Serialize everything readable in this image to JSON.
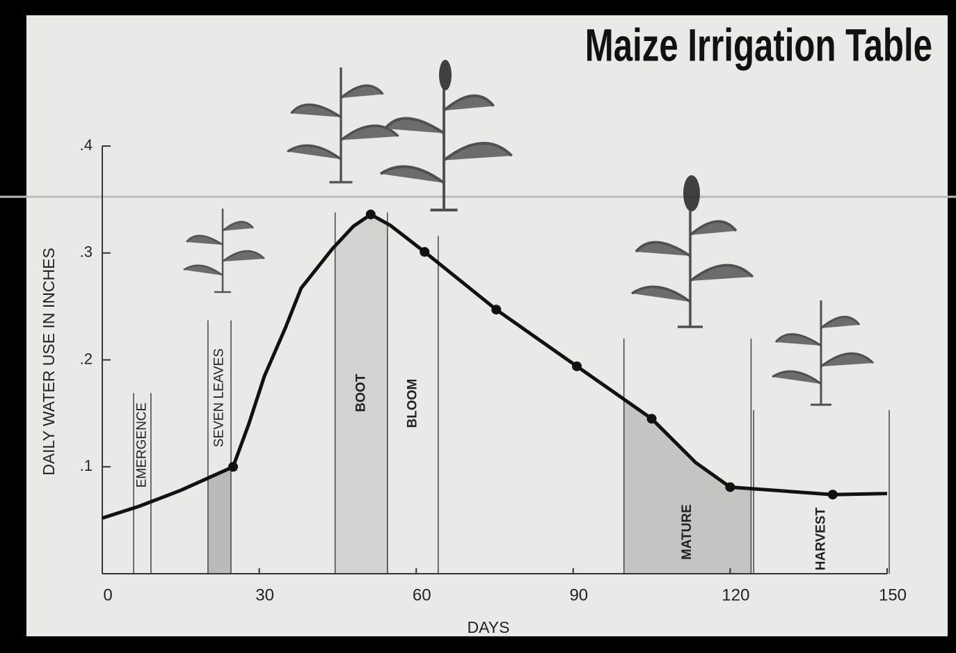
{
  "chart_data": {
    "type": "line",
    "title": "Maize Irrigation Table",
    "x_label": "DAYS",
    "y_label": "DAILY WATER USE IN INCHES",
    "xlim": [
      0,
      150
    ],
    "ylim": [
      0,
      0.4
    ],
    "xticks": [
      0,
      30,
      60,
      90,
      120,
      150
    ],
    "yticks": [
      {
        "value": 0.1,
        "label": ".1"
      },
      {
        "value": 0.2,
        "label": ".2"
      },
      {
        "value": 0.3,
        "label": ".3"
      },
      {
        "value": 0.4,
        "label": ".4"
      }
    ],
    "series": [
      {
        "color": "#111111",
        "x": [
          0,
          7,
          15,
          20,
          25,
          28,
          31,
          35,
          38,
          44,
          48,
          51.3,
          55,
          61.6,
          75.3,
          90.7,
          105,
          113.4,
          120,
          139.6,
          150
        ],
        "values": [
          0.052,
          0.063,
          0.078,
          0.089,
          0.1,
          0.14,
          0.185,
          0.23,
          0.267,
          0.304,
          0.325,
          0.336,
          0.326,
          0.301,
          0.247,
          0.194,
          0.145,
          0.104,
          0.081,
          0.074,
          0.075
        ]
      },
      {
        "type": "scatter",
        "color": "#111111",
        "x": [
          25,
          51.3,
          61.6,
          75.3,
          90.7,
          105,
          120,
          139.6
        ],
        "values": [
          0.1,
          0.336,
          0.301,
          0.247,
          0.194,
          0.145,
          0.081,
          0.074
        ]
      }
    ],
    "stages": [
      {
        "label": "EMERGENCE",
        "start": 6,
        "end": 9.3,
        "top": 0.169,
        "shade": null
      },
      {
        "label": "SEVEN LEAVES",
        "start": 20.2,
        "end": 24.6,
        "top": 0.237,
        "shade": "#b9b9b6"
      },
      {
        "label": "BOOT",
        "start": 44.5,
        "end": 54.5,
        "top": 0.338,
        "shade": "#d2d2cf"
      },
      {
        "label": "BLOOM",
        "start": 54.5,
        "end": 64.2,
        "top": 0.316,
        "shade": null
      },
      {
        "label": "MATURE",
        "start": 99.7,
        "end": 124,
        "top": 0.22,
        "shade": "#c4c4c1"
      },
      {
        "label": "HARVEST",
        "start": 124.5,
        "end": 150.4,
        "top": 0.153,
        "shade": null
      }
    ]
  }
}
